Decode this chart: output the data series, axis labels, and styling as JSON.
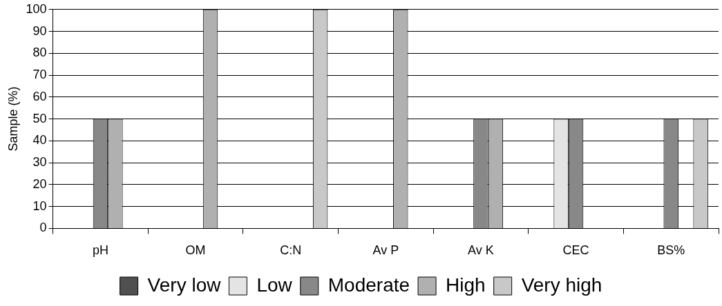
{
  "chart_data": {
    "type": "bar",
    "ylabel": "Sample (%)",
    "categories": [
      "pH",
      "OM",
      "C:N",
      "Av P",
      "Av K",
      "CEC",
      "BS%"
    ],
    "series": [
      {
        "name": "Very low",
        "color": "#505050",
        "values": [
          0,
          0,
          0,
          0,
          0,
          0,
          0
        ]
      },
      {
        "name": "Low",
        "color": "#e4e4e4",
        "values": [
          0,
          0,
          0,
          0,
          0,
          50,
          0
        ]
      },
      {
        "name": "Moderate",
        "color": "#888888",
        "values": [
          50,
          0,
          0,
          0,
          50,
          50,
          50
        ]
      },
      {
        "name": "High",
        "color": "#b0b0b0",
        "values": [
          50,
          100,
          0,
          100,
          50,
          0,
          0
        ]
      },
      {
        "name": "Very high",
        "color": "#c8c8c8",
        "values": [
          0,
          0,
          100,
          0,
          0,
          0,
          50
        ]
      }
    ],
    "ylim": [
      0,
      100
    ],
    "yticks": [
      0,
      10,
      20,
      30,
      40,
      50,
      60,
      70,
      80,
      90,
      100
    ],
    "grid": "y",
    "legend": "bottom"
  }
}
